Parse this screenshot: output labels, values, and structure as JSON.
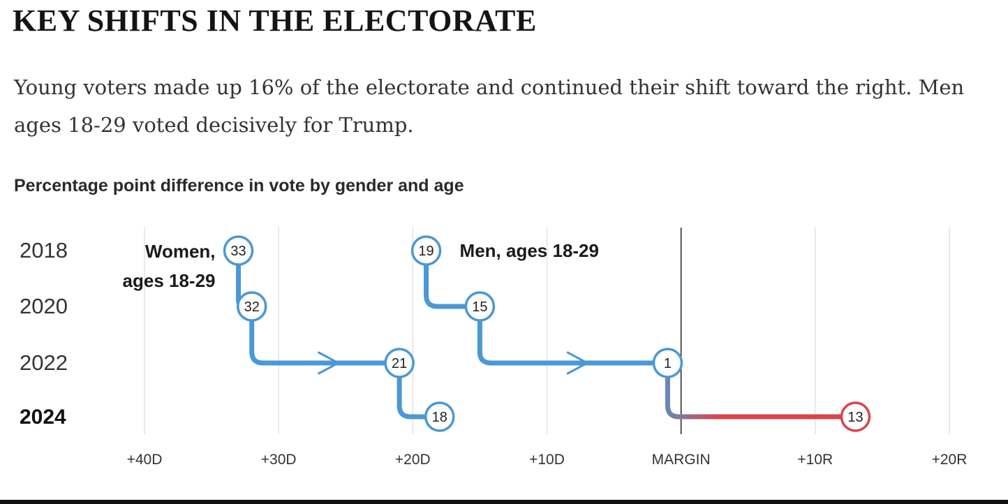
{
  "headline": "KEY SHIFTS IN THE ELECTORATE",
  "dek": "Young voters made up 16% of the electorate and continued their shift toward the right. Men ages 18-29 voted decisively for Trump.",
  "chart_data": {
    "type": "line",
    "title": "Percentage point difference in vote by gender and age",
    "xlabel": "",
    "ylabel": "",
    "x_axis": {
      "description": "margin, negative = Democratic, positive = Republican",
      "xlim": [
        -40,
        20
      ],
      "ticks": [
        -40,
        -30,
        -20,
        -10,
        0,
        10,
        20
      ],
      "tick_labels": [
        "+40D",
        "+30D",
        "+20D",
        "+10D",
        "MARGIN",
        "+10R",
        "+20R"
      ]
    },
    "categories": [
      "2018",
      "2020",
      "2022",
      "2024"
    ],
    "highlight_category": "2024",
    "grid": true,
    "zero_line": true,
    "colors": {
      "dem": "#4a98d6",
      "rep": "#d9454a",
      "grid": "#e3e3e3",
      "zero": "#222222"
    },
    "series": [
      {
        "name": "Women, ages 18-29",
        "label_lines": [
          "Women,",
          "ages 18-29"
        ],
        "margins": [
          -33,
          -32,
          -21,
          -18
        ],
        "value_labels": [
          "33",
          "32",
          "21",
          "18"
        ],
        "party": [
          "D",
          "D",
          "D",
          "D"
        ]
      },
      {
        "name": "Men, ages 18-29",
        "label_lines": [
          "Men, ages 18-29"
        ],
        "margins": [
          -19,
          -15,
          -1,
          13
        ],
        "value_labels": [
          "19",
          "15",
          "1",
          "13"
        ],
        "party": [
          "D",
          "D",
          "D",
          "R"
        ]
      }
    ]
  }
}
